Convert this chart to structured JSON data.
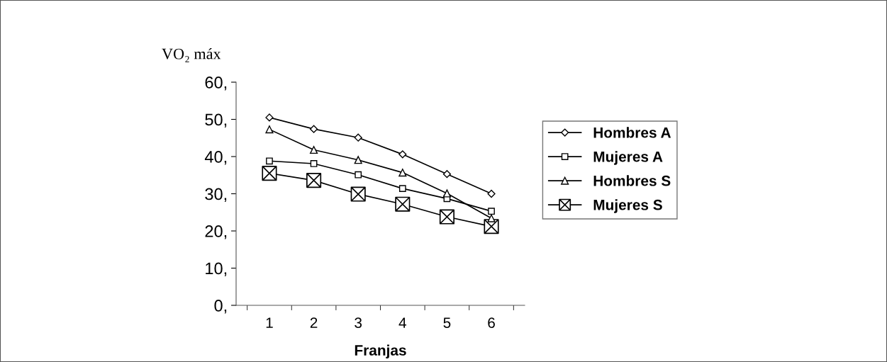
{
  "chart_data": {
    "type": "line",
    "ylabel": "VO₂ máx",
    "xlabel": "Franjas",
    "categories": [
      "1",
      "2",
      "3",
      "4",
      "5",
      "6"
    ],
    "series": [
      {
        "name": "Hombres A",
        "color": "#000000",
        "marker": "diamond",
        "values": [
          50.5,
          47.4,
          45.1,
          40.6,
          35.3,
          30.0
        ]
      },
      {
        "name": "Mujeres A",
        "color": "#000000",
        "marker": "square",
        "values": [
          38.8,
          38.1,
          35.1,
          31.4,
          28.7,
          25.3
        ]
      },
      {
        "name": "Hombres S",
        "color": "#000000",
        "marker": "triangle",
        "values": [
          47.3,
          41.8,
          39.1,
          35.7,
          30.1,
          23.4
        ]
      },
      {
        "name": "Mujeres S",
        "color": "#000000",
        "marker": "cross",
        "values": [
          35.5,
          33.6,
          29.9,
          27.2,
          23.8,
          21.2
        ]
      }
    ],
    "ylim": [
      0,
      60
    ],
    "yticks": [
      {
        "value": 0,
        "label": "0,"
      },
      {
        "value": 10,
        "label": "10,"
      },
      {
        "value": 20,
        "label": "20,"
      },
      {
        "value": 30,
        "label": "30,"
      },
      {
        "value": 40,
        "label": "40,"
      },
      {
        "value": 50,
        "label": "50,"
      },
      {
        "value": 60,
        "label": "60,"
      }
    ],
    "grid": false,
    "legend": "right",
    "line_style": "solid"
  }
}
